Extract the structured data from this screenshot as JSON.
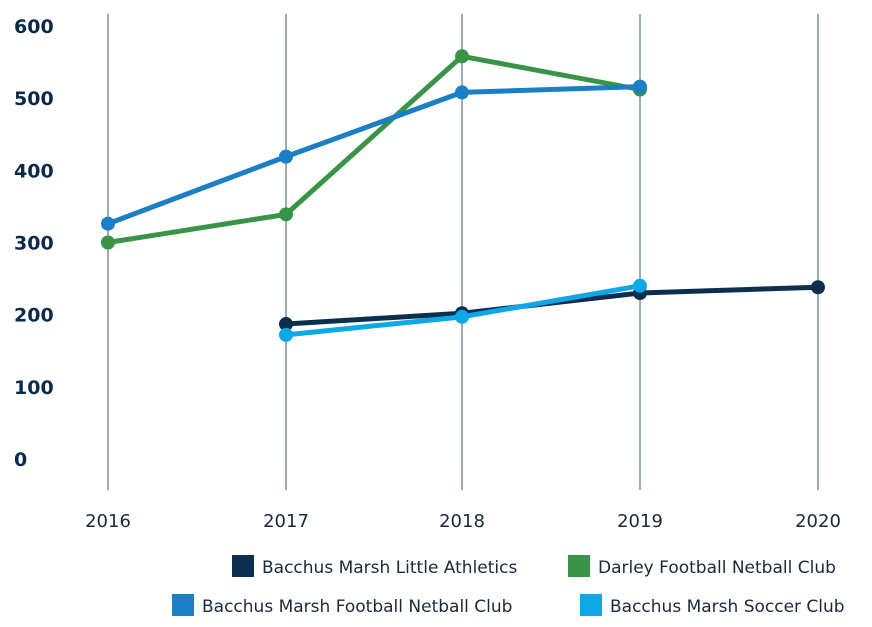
{
  "chart_data": {
    "type": "line",
    "title": "",
    "xlabel": "",
    "ylabel": "",
    "x": [
      "2016",
      "2017",
      "2018",
      "2019",
      "2020"
    ],
    "ylim": [
      0,
      600
    ],
    "yticks": [
      "0",
      "100",
      "200",
      "300",
      "400",
      "500",
      "600"
    ],
    "grid": "vertical",
    "legend_position": "bottom-right",
    "series": [
      {
        "name": "Bacchus Marsh Little Athletics",
        "color": "#0d2f4f",
        "values": [
          null,
          187,
          202,
          230,
          238
        ]
      },
      {
        "name": "Darley Football Netball Club",
        "color": "#3a9447",
        "values": [
          300,
          339,
          558,
          512,
          null
        ]
      },
      {
        "name": "Bacchus Marsh Football Netball Club",
        "color": "#1a7fc4",
        "values": [
          326,
          419,
          508,
          516,
          null
        ]
      },
      {
        "name": "Bacchus Marsh Soccer Club",
        "color": "#0ea8e8",
        "values": [
          null,
          172,
          197,
          240,
          null
        ]
      }
    ]
  }
}
